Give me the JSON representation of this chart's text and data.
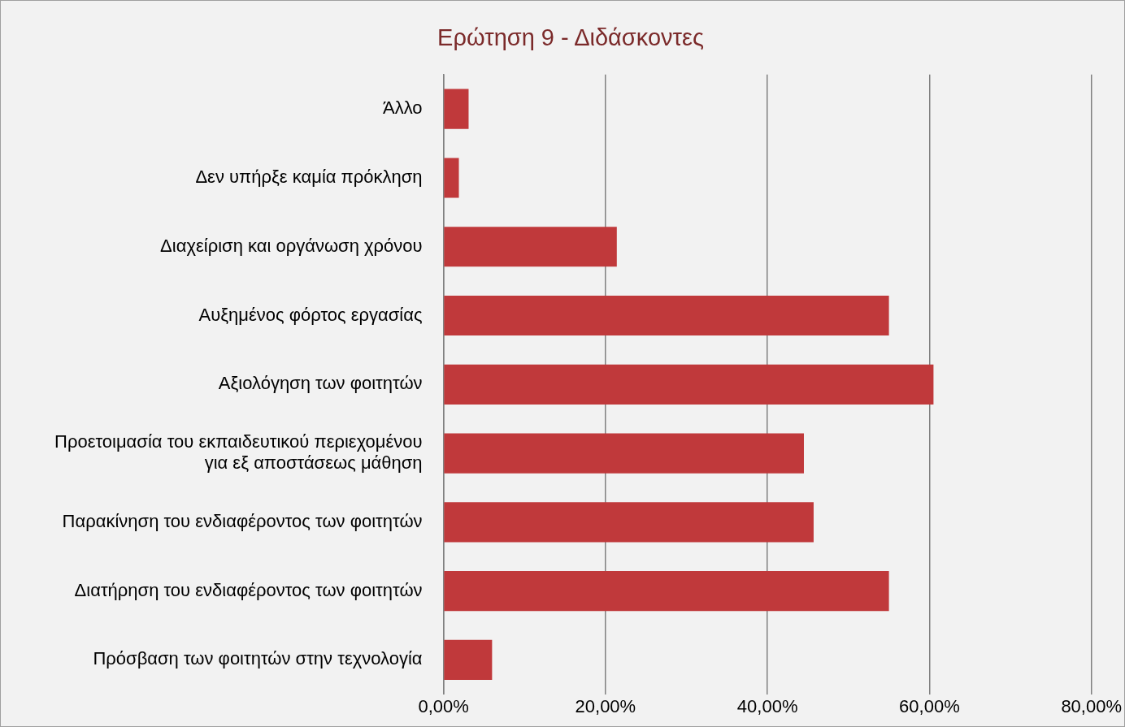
{
  "chart_data": {
    "type": "bar",
    "orientation": "horizontal",
    "title": "Ερώτηση 9 - Διδάσκοντες",
    "categories": [
      "Άλλο",
      "Δεν υπήρξε καμία πρόκληση",
      "Διαχείριση και οργάνωση χρόνου",
      "Αυξημένος φόρτος εργασίας",
      "Αξιολόγηση των φοιτητών",
      "Προετοιμασία του εκπαιδευτικού περιεχομένου για εξ αποστάσεως μάθηση",
      "Παρακίνηση του ενδιαφέροντος των φοιτητών",
      "Διατήρηση του ενδιαφέροντος των φοιτητών",
      "Πρόσβαση των φοιτητών στην τεχνολογία"
    ],
    "values": [
      3.1,
      1.9,
      21.4,
      55.0,
      60.5,
      44.5,
      45.7,
      55.0,
      6.0
    ],
    "color": "#c0393b",
    "xlim": [
      0,
      80
    ],
    "xticks": [
      {
        "value": 0,
        "label": "0,00%"
      },
      {
        "value": 20,
        "label": "20,00%"
      },
      {
        "value": 40,
        "label": "40,00%"
      },
      {
        "value": 60,
        "label": "60,00%"
      },
      {
        "value": 80,
        "label": "80,00%"
      }
    ],
    "grid": "x",
    "legend": false
  }
}
